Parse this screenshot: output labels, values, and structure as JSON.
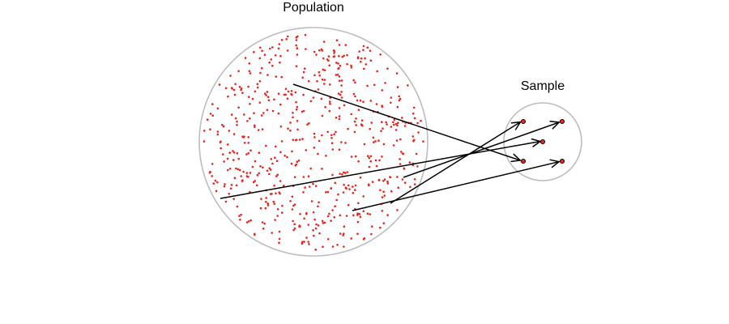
{
  "labels": {
    "population": "Population",
    "sample": "Sample"
  },
  "colors": {
    "dot": "#e8261c",
    "circle_outline": "#bdbdbd",
    "arrow": "#000000"
  },
  "population_dot_count": 600,
  "sample_size": 4
}
